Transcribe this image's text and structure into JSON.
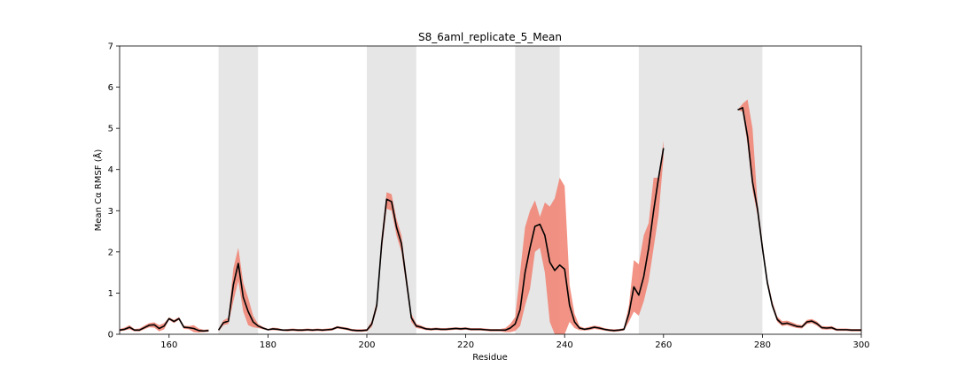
{
  "chart_data": {
    "type": "line",
    "title": "S8_6aml_replicate_5_Mean",
    "xlabel": "Residue",
    "ylabel": "Mean Cα RMSF (Å)",
    "xlim": [
      150,
      300
    ],
    "ylim": [
      0,
      7
    ],
    "xticks": [
      160,
      180,
      200,
      220,
      240,
      260,
      280,
      300
    ],
    "yticks": [
      0,
      1,
      2,
      3,
      4,
      5,
      6,
      7
    ],
    "grid": false,
    "highlight_regions": [
      [
        170,
        178
      ],
      [
        200,
        210
      ],
      [
        230,
        239
      ],
      [
        255,
        280
      ]
    ],
    "colors": {
      "line": "#000000",
      "band": "#f08070",
      "region": "#d9d9d9",
      "axis": "#000000"
    },
    "series": [
      {
        "segments": [
          {
            "x": [
              150,
              151,
              152,
              153,
              154,
              155,
              156,
              157,
              158,
              159,
              160,
              161,
              162,
              163,
              164,
              165,
              166,
              167,
              168
            ],
            "y": [
              0.1,
              0.12,
              0.17,
              0.1,
              0.1,
              0.16,
              0.22,
              0.23,
              0.14,
              0.2,
              0.38,
              0.31,
              0.38,
              0.17,
              0.16,
              0.14,
              0.09,
              0.08,
              0.09
            ],
            "lower": [
              0.07,
              0.09,
              0.12,
              0.07,
              0.07,
              0.12,
              0.17,
              0.16,
              0.07,
              0.12,
              0.35,
              0.27,
              0.35,
              0.13,
              0.12,
              0.05,
              0.04,
              0.05,
              0.06
            ],
            "upper": [
              0.13,
              0.16,
              0.22,
              0.13,
              0.14,
              0.21,
              0.27,
              0.29,
              0.22,
              0.27,
              0.41,
              0.35,
              0.42,
              0.21,
              0.2,
              0.22,
              0.14,
              0.11,
              0.12
            ]
          },
          {
            "x": [
              170,
              171,
              172,
              173,
              174,
              175,
              176,
              177,
              178,
              179,
              180,
              181,
              182,
              183,
              184,
              185,
              186,
              187,
              188,
              189,
              190,
              191,
              192,
              193,
              194,
              195,
              196,
              197,
              198,
              199,
              200,
              201,
              202,
              203,
              204,
              205,
              206,
              207,
              208,
              209,
              210,
              211,
              212,
              213,
              214,
              215,
              216,
              217,
              218,
              219,
              220,
              221,
              222,
              223,
              224,
              225,
              226,
              227,
              228,
              229,
              230,
              231,
              232,
              233,
              234,
              235,
              236,
              237,
              238,
              239,
              240,
              241,
              242,
              243,
              244,
              245,
              246,
              247,
              248,
              249,
              250,
              251,
              252,
              253,
              254,
              255,
              256,
              257,
              258,
              259,
              260
            ],
            "y": [
              0.1,
              0.28,
              0.32,
              1.2,
              1.72,
              0.9,
              0.55,
              0.3,
              0.2,
              0.15,
              0.11,
              0.13,
              0.12,
              0.1,
              0.1,
              0.11,
              0.1,
              0.1,
              0.11,
              0.1,
              0.11,
              0.1,
              0.11,
              0.12,
              0.17,
              0.15,
              0.13,
              0.1,
              0.09,
              0.09,
              0.1,
              0.25,
              0.7,
              2.2,
              3.28,
              3.22,
              2.6,
              2.2,
              1.3,
              0.4,
              0.2,
              0.17,
              0.13,
              0.12,
              0.13,
              0.12,
              0.12,
              0.13,
              0.14,
              0.13,
              0.14,
              0.12,
              0.12,
              0.12,
              0.11,
              0.1,
              0.1,
              0.1,
              0.1,
              0.15,
              0.25,
              0.6,
              1.5,
              2.1,
              2.62,
              2.67,
              2.4,
              1.75,
              1.55,
              1.68,
              1.58,
              0.7,
              0.3,
              0.15,
              0.12,
              0.14,
              0.17,
              0.15,
              0.12,
              0.1,
              0.09,
              0.1,
              0.12,
              0.5,
              1.15,
              0.95,
              1.4,
              2.1,
              3.0,
              3.8,
              4.52
            ],
            "lower": [
              0.07,
              0.22,
              0.25,
              0.8,
              1.3,
              0.55,
              0.22,
              0.17,
              0.15,
              0.12,
              0.09,
              0.1,
              0.09,
              0.08,
              0.07,
              0.08,
              0.07,
              0.07,
              0.08,
              0.07,
              0.08,
              0.07,
              0.08,
              0.09,
              0.14,
              0.12,
              0.1,
              0.07,
              0.06,
              0.06,
              0.07,
              0.18,
              0.6,
              2.0,
              3.05,
              3.0,
              2.4,
              2.0,
              1.15,
              0.3,
              0.15,
              0.13,
              0.1,
              0.09,
              0.1,
              0.09,
              0.09,
              0.1,
              0.11,
              0.1,
              0.11,
              0.09,
              0.09,
              0.09,
              0.08,
              0.07,
              0.07,
              0.07,
              0.05,
              0.05,
              0.08,
              0.2,
              0.7,
              1.1,
              2.0,
              2.1,
              1.5,
              0.3,
              0.0,
              0.0,
              0.0,
              0.3,
              0.15,
              0.1,
              0.09,
              0.1,
              0.13,
              0.11,
              0.09,
              0.07,
              0.06,
              0.07,
              0.09,
              0.3,
              0.55,
              0.45,
              0.8,
              1.3,
              2.1,
              2.9,
              4.3
            ],
            "upper": [
              0.13,
              0.34,
              0.4,
              1.6,
              2.1,
              1.25,
              0.88,
              0.45,
              0.25,
              0.18,
              0.13,
              0.16,
              0.15,
              0.12,
              0.13,
              0.14,
              0.13,
              0.13,
              0.14,
              0.13,
              0.14,
              0.13,
              0.14,
              0.15,
              0.2,
              0.18,
              0.16,
              0.13,
              0.12,
              0.12,
              0.13,
              0.32,
              0.8,
              2.4,
              3.45,
              3.4,
              2.8,
              2.4,
              1.45,
              0.5,
              0.25,
              0.21,
              0.16,
              0.15,
              0.16,
              0.15,
              0.15,
              0.16,
              0.17,
              0.16,
              0.17,
              0.15,
              0.15,
              0.15,
              0.14,
              0.13,
              0.13,
              0.13,
              0.15,
              0.25,
              0.42,
              1.5,
              2.6,
              3.0,
              3.25,
              2.85,
              3.2,
              3.1,
              3.3,
              3.8,
              3.6,
              1.2,
              0.5,
              0.2,
              0.15,
              0.18,
              0.21,
              0.19,
              0.15,
              0.13,
              0.12,
              0.13,
              0.15,
              0.7,
              1.8,
              1.7,
              2.4,
              2.7,
              3.8,
              3.8,
              4.7
            ]
          },
          {
            "x": [
              275,
              276,
              277,
              278,
              279,
              280,
              281,
              282,
              283,
              284,
              285,
              286,
              287,
              288,
              289,
              290,
              291,
              292,
              293,
              294,
              295,
              296,
              297,
              298,
              299,
              300
            ],
            "y": [
              5.45,
              5.5,
              4.8,
              3.7,
              3.05,
              2.1,
              1.25,
              0.7,
              0.36,
              0.25,
              0.27,
              0.23,
              0.19,
              0.18,
              0.3,
              0.32,
              0.26,
              0.16,
              0.15,
              0.16,
              0.11,
              0.11,
              0.11,
              0.1,
              0.1,
              0.1
            ],
            "lower": [
              5.45,
              5.4,
              4.6,
              3.5,
              2.9,
              2.0,
              1.2,
              0.65,
              0.3,
              0.2,
              0.22,
              0.18,
              0.15,
              0.14,
              0.25,
              0.27,
              0.21,
              0.12,
              0.11,
              0.12,
              0.08,
              0.08,
              0.08,
              0.07,
              0.07,
              0.07
            ],
            "upper": [
              5.45,
              5.6,
              5.7,
              5.0,
              3.2,
              2.25,
              1.35,
              0.8,
              0.43,
              0.32,
              0.33,
              0.29,
              0.24,
              0.22,
              0.35,
              0.37,
              0.31,
              0.2,
              0.19,
              0.2,
              0.14,
              0.14,
              0.14,
              0.13,
              0.13,
              0.13
            ]
          }
        ]
      }
    ]
  }
}
